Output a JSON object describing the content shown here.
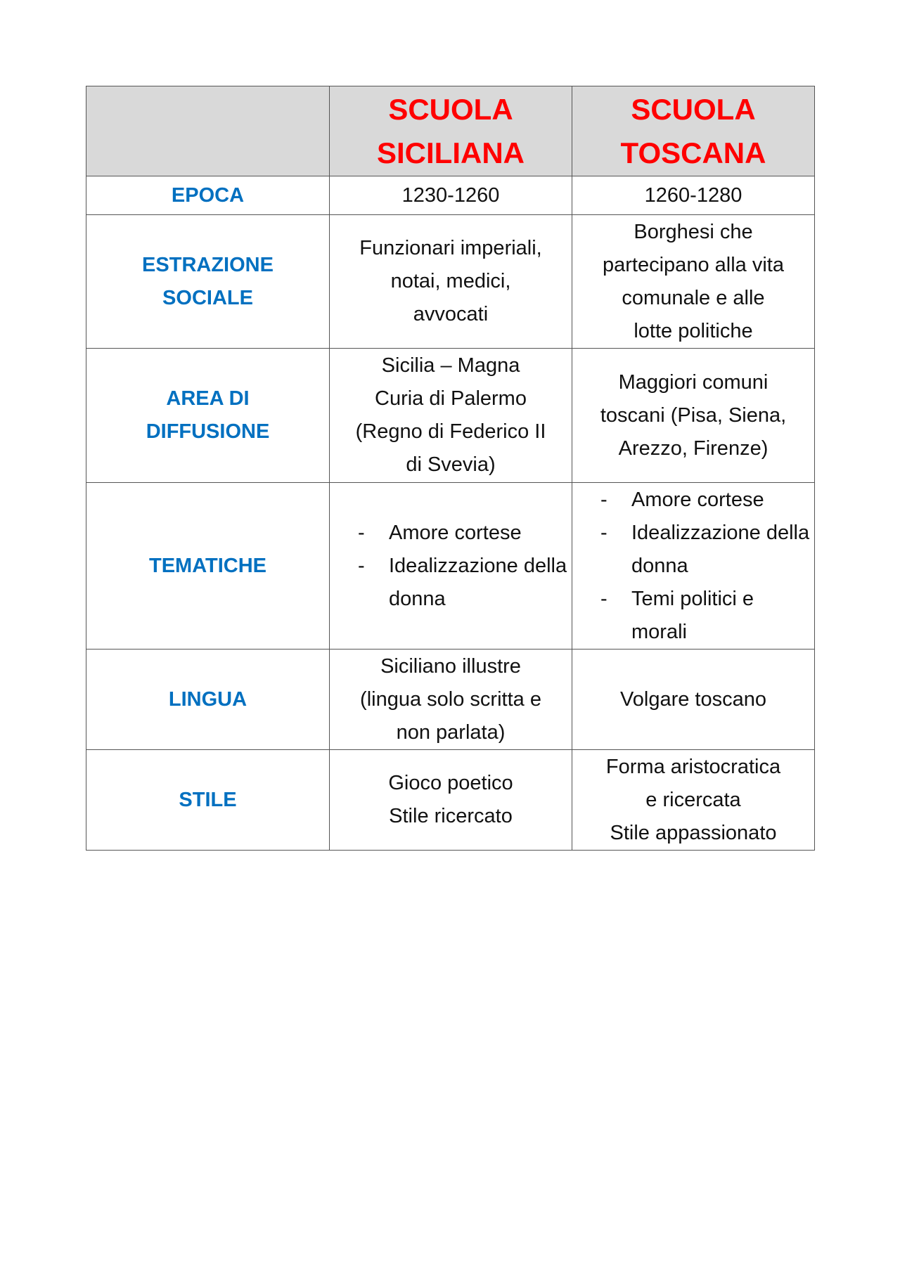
{
  "header": {
    "col1": "",
    "col2": [
      "SCUOLA",
      "SICILIANA"
    ],
    "col3": [
      "SCUOLA",
      "TOSCANA"
    ]
  },
  "rows": [
    {
      "label": [
        "EPOCA"
      ],
      "sicilian": [
        "1230-1260"
      ],
      "tuscan": [
        "1260-1280"
      ]
    },
    {
      "label": [
        "ESTRAZIONE",
        "SOCIALE"
      ],
      "sicilian": [
        "Funzionari imperiali,",
        "notai, medici,",
        "avvocati"
      ],
      "tuscan": [
        "Borghesi che",
        "partecipano alla vita",
        "comunale e alle",
        "lotte politiche"
      ]
    },
    {
      "label": [
        "AREA DI",
        "DIFFUSIONE"
      ],
      "sicilian": [
        "Sicilia – Magna",
        "Curia di Palermo",
        "(Regno di Federico II",
        "di Svevia)"
      ],
      "tuscan": [
        "Maggiori comuni",
        "toscani (Pisa, Siena,",
        "Arezzo, Firenze)"
      ]
    },
    {
      "label": [
        "TEMATICHE"
      ],
      "sicilian_list": [
        "Amore cortese",
        "Idealizzazione della donna"
      ],
      "tuscan_list": [
        "Amore cortese",
        "Idealizzazione della donna",
        "Temi politici e morali"
      ]
    },
    {
      "label": [
        "LINGUA"
      ],
      "sicilian": [
        "Siciliano illustre",
        "(lingua solo scritta e",
        "non parlata)"
      ],
      "tuscan": [
        "Volgare toscano"
      ]
    },
    {
      "label": [
        "STILE"
      ],
      "sicilian": [
        "Gioco poetico",
        "Stile ricercato"
      ],
      "tuscan": [
        "Forma aristocratica",
        "e ricercata",
        "Stile appassionato"
      ]
    }
  ],
  "colors": {
    "header_text": "#ff0000",
    "label_text": "#0070c0",
    "header_bg": "#d9d9d9"
  }
}
